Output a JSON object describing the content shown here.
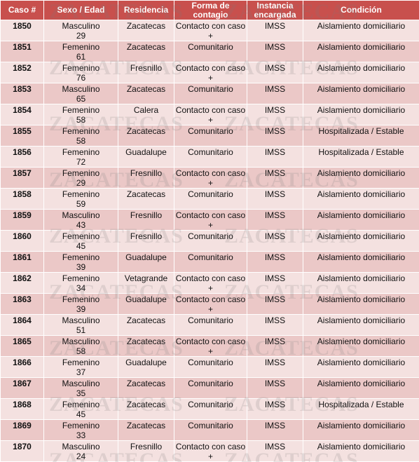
{
  "table": {
    "header": [
      "Caso #",
      "Sexo / Edad",
      "Residencia",
      "Forma de contagio",
      "Instancia encargada",
      "Condición"
    ],
    "rows": [
      [
        1850,
        "Masculino",
        29,
        "Zacatecas",
        "Contacto con caso +",
        "IMSS",
        "Aislamiento domiciliario"
      ],
      [
        1851,
        "Femenino",
        61,
        "Zacatecas",
        "Comunitario",
        "IMSS",
        "Aislamiento domiciliario"
      ],
      [
        1852,
        "Femenino",
        76,
        "Fresnillo",
        "Contacto con caso +",
        "IMSS",
        "Aislamiento domiciliario"
      ],
      [
        1853,
        "Masculino",
        65,
        "Zacatecas",
        "Comunitario",
        "IMSS",
        "Aislamiento domiciliario"
      ],
      [
        1854,
        "Femenino",
        58,
        "Calera",
        "Contacto con caso +",
        "IMSS",
        "Aislamiento domiciliario"
      ],
      [
        1855,
        "Femenino",
        58,
        "Zacatecas",
        "Comunitario",
        "IMSS",
        "Hospitalizada / Estable"
      ],
      [
        1856,
        "Femenino",
        72,
        "Guadalupe",
        "Comunitario",
        "IMSS",
        "Hospitalizada / Estable"
      ],
      [
        1857,
        "Femenino",
        29,
        "Fresnillo",
        "Contacto con caso +",
        "IMSS",
        "Aislamiento domiciliario"
      ],
      [
        1858,
        "Femenino",
        59,
        "Zacatecas",
        "Comunitario",
        "IMSS",
        "Aislamiento domiciliario"
      ],
      [
        1859,
        "Masculino",
        43,
        "Fresnillo",
        "Contacto con caso +",
        "IMSS",
        "Aislamiento domiciliario"
      ],
      [
        1860,
        "Femenino",
        45,
        "Fresnillo",
        "Comunitario",
        "IMSS",
        "Aislamiento domiciliario"
      ],
      [
        1861,
        "Femenino",
        39,
        "Guadalupe",
        "Comunitario",
        "IMSS",
        "Aislamiento domiciliario"
      ],
      [
        1862,
        "Femenino",
        34,
        "Vetagrande",
        "Contacto con caso +",
        "IMSS",
        "Aislamiento domiciliario"
      ],
      [
        1863,
        "Femenino",
        39,
        "Guadalupe",
        "Contacto con caso +",
        "IMSS",
        "Aislamiento domiciliario"
      ],
      [
        1864,
        "Masculino",
        51,
        "Zacatecas",
        "Comunitario",
        "IMSS",
        "Aislamiento domiciliario"
      ],
      [
        1865,
        "Masculino",
        58,
        "Zacatecas",
        "Contacto con caso +",
        "IMSS",
        "Aislamiento domiciliario"
      ],
      [
        1866,
        "Femenino",
        37,
        "Guadalupe",
        "Comunitario",
        "IMSS",
        "Aislamiento domiciliario"
      ],
      [
        1867,
        "Masculino",
        35,
        "Zacatecas",
        "Comunitario",
        "IMSS",
        "Aislamiento domiciliario"
      ],
      [
        1868,
        "Femenino",
        45,
        "Zacatecas",
        "Comunitario",
        "IMSS",
        "Hospitalizada / Estable"
      ],
      [
        1869,
        "Femenino",
        33,
        "Zacatecas",
        "Comunitario",
        "IMSS",
        "Aislamiento domiciliario"
      ],
      [
        1870,
        "Masculino",
        24,
        "Fresnillo",
        "Contacto con caso +",
        "IMSS",
        "Aislamiento domiciliario"
      ]
    ]
  },
  "watermark": "ZACATECAS"
}
